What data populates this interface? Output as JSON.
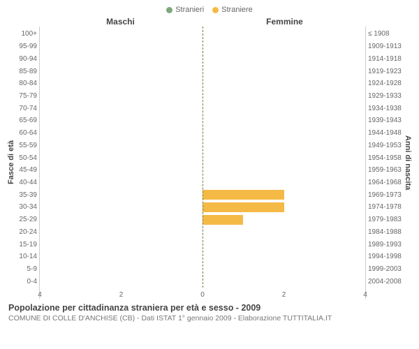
{
  "legend": {
    "series1": {
      "label": "Stranieri",
      "color": "#7da87d"
    },
    "series2": {
      "label": "Straniere",
      "color": "#f5b946"
    }
  },
  "header_left": "Maschi",
  "header_right": "Femmine",
  "y_left_label": "Fasce di età",
  "y_right_label": "Anni di nascita",
  "age_bands": [
    "100+",
    "95-99",
    "90-94",
    "85-89",
    "80-84",
    "75-79",
    "70-74",
    "65-69",
    "60-64",
    "55-59",
    "50-54",
    "45-49",
    "40-44",
    "35-39",
    "30-34",
    "25-29",
    "20-24",
    "15-19",
    "10-14",
    "5-9",
    "0-4"
  ],
  "birth_years": [
    "≤ 1908",
    "1909-1913",
    "1914-1918",
    "1919-1923",
    "1924-1928",
    "1929-1933",
    "1934-1938",
    "1939-1943",
    "1944-1948",
    "1949-1953",
    "1954-1958",
    "1959-1963",
    "1964-1968",
    "1969-1973",
    "1974-1978",
    "1979-1983",
    "1984-1988",
    "1989-1993",
    "1994-1998",
    "1999-2003",
    "2004-2008"
  ],
  "x_max": 4,
  "x_ticks": [
    4,
    2,
    0,
    2,
    4
  ],
  "male_values": [
    0,
    0,
    0,
    0,
    0,
    0,
    0,
    0,
    0,
    0,
    0,
    0,
    0,
    0,
    0,
    0,
    0,
    0,
    0,
    0,
    0
  ],
  "female_values": [
    0,
    0,
    0,
    0,
    0,
    0,
    0,
    0,
    0,
    0,
    0,
    0,
    0,
    2,
    2,
    1,
    0,
    0,
    0,
    0,
    0
  ],
  "bar_color_female": "#f5b946",
  "bar_color_male": "#7da87d",
  "grid_color": "#ccc",
  "background_color": "#ffffff",
  "title": "Popolazione per cittadinanza straniera per età e sesso - 2009",
  "subtitle": "COMUNE DI COLLE D'ANCHISE (CB) - Dati ISTAT 1° gennaio 2009 - Elaborazione TUTTITALIA.IT"
}
